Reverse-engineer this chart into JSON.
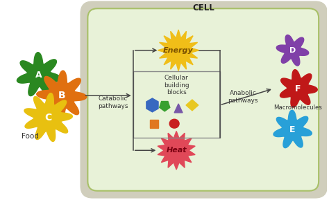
{
  "title": "CELL",
  "bg": "#ffffff",
  "cell_fill": "#e8f2d8",
  "food_label": "Food",
  "energy_label": "Energy",
  "heat_label": "Heat",
  "catabolic_label": "Catabolic\npathways",
  "anabolic_label": "Anabolic\npathways",
  "building_blocks_label": "Cellular\nbuilding\nblocks",
  "macromolecules_label": "Macromolecules",
  "blob_A_color": "#2a8820",
  "blob_B_color": "#e07010",
  "blob_C_color": "#e8c010",
  "blob_D_color": "#8040a8",
  "blob_E_color": "#28a0d8",
  "blob_F_color": "#c01818",
  "energy_color": "#f0be18",
  "heat_color": "#e04858",
  "arrow_color": "#444444",
  "text_color": "#333333",
  "membrane_outer_color": "#c8c8b8",
  "membrane_inner_color": "#a8c070",
  "box_edge_color": "#888888"
}
